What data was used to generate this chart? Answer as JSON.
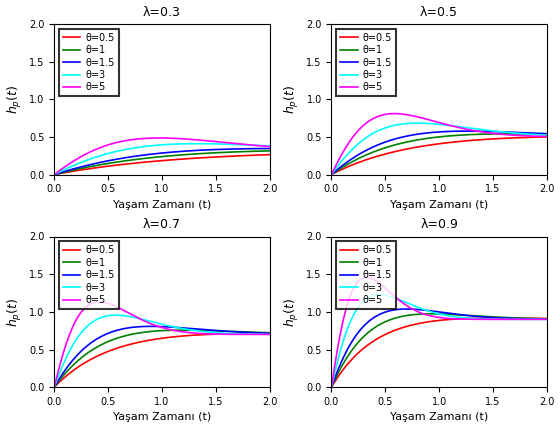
{
  "lambdas": [
    0.3,
    0.5,
    0.7,
    0.9
  ],
  "thetas": [
    0.5,
    1.0,
    1.5,
    3.0,
    5.0
  ],
  "theta_labels": [
    "θ=0.5",
    "θ=1",
    "θ=1.5",
    "θ=3",
    "θ=5"
  ],
  "colors": [
    "red",
    "green",
    "blue",
    "cyan",
    "magenta"
  ],
  "t_max": 2.0,
  "y_max": 2.0,
  "xlabel": "Yaşam Zamanı (t)",
  "titles": [
    "λ=0.3",
    "λ=0.5",
    "λ=0.7",
    "λ=0.9"
  ],
  "figsize": [
    5.6,
    4.28
  ],
  "dpi": 100
}
